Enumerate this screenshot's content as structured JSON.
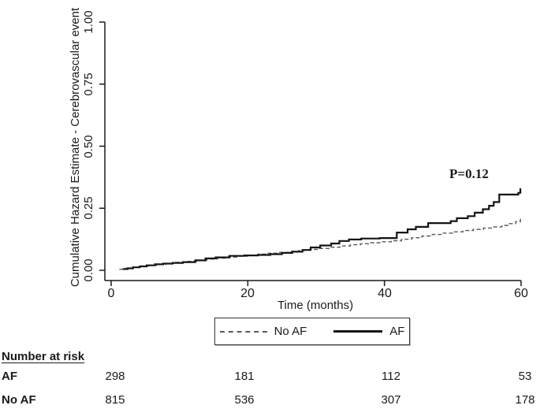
{
  "chart_data": {
    "type": "line",
    "subtype": "step-cumulative-hazard",
    "title": "",
    "xlabel": "Time (months)",
    "ylabel": "Cumulative Hazard Estimate - Cerebrovascular event",
    "xlim": [
      0,
      60
    ],
    "ylim": [
      0,
      1.0
    ],
    "x_ticks": [
      0,
      20,
      40,
      60
    ],
    "x_tick_labels": [
      "0",
      "20",
      "40",
      "60"
    ],
    "y_ticks": [
      0,
      0.25,
      0.5,
      0.75,
      1.0
    ],
    "y_tick_labels": [
      "0.00",
      "0.25",
      "0.50",
      "0.75",
      "1.00"
    ],
    "grid": "off",
    "legend_position": "bottom-center-box",
    "annotation": {
      "text": "P=0.12",
      "x_month": 53,
      "y_value": 0.4
    },
    "axis_color": "#1a1a1a",
    "series": [
      {
        "name": "No AF",
        "style": "dashed",
        "color": "#595959",
        "stroke_width": 1.4,
        "points": [
          [
            1.2,
            0.004
          ],
          [
            2.2,
            0.008
          ],
          [
            3.2,
            0.012
          ],
          [
            4.2,
            0.016
          ],
          [
            5.4,
            0.02
          ],
          [
            6.6,
            0.024
          ],
          [
            8,
            0.028
          ],
          [
            9.5,
            0.032
          ],
          [
            11,
            0.036
          ],
          [
            12.5,
            0.04
          ],
          [
            14,
            0.045
          ],
          [
            15.5,
            0.049
          ],
          [
            17,
            0.053
          ],
          [
            18.5,
            0.057
          ],
          [
            20,
            0.061
          ],
          [
            21.5,
            0.065
          ],
          [
            23,
            0.069
          ],
          [
            24.5,
            0.072
          ],
          [
            26,
            0.076
          ],
          [
            27.5,
            0.08
          ],
          [
            29,
            0.084
          ],
          [
            30.5,
            0.088
          ],
          [
            32,
            0.093
          ],
          [
            33.5,
            0.098
          ],
          [
            35,
            0.103
          ],
          [
            36.5,
            0.107
          ],
          [
            38,
            0.111
          ],
          [
            39.5,
            0.115
          ],
          [
            41,
            0.119
          ],
          [
            42.5,
            0.125
          ],
          [
            44,
            0.131
          ],
          [
            45.5,
            0.138
          ],
          [
            47,
            0.144
          ],
          [
            48.5,
            0.15
          ],
          [
            50,
            0.155
          ],
          [
            51.5,
            0.16
          ],
          [
            53,
            0.165
          ],
          [
            54.5,
            0.17
          ],
          [
            56,
            0.175
          ],
          [
            57.2,
            0.181
          ],
          [
            58.2,
            0.188
          ],
          [
            59.2,
            0.196
          ],
          [
            59.9,
            0.205
          ]
        ]
      },
      {
        "name": "AF",
        "style": "solid",
        "color": "#141414",
        "stroke_width": 2.2,
        "points": [
          [
            1.7,
            0.005
          ],
          [
            2.4,
            0.008
          ],
          [
            3.2,
            0.012
          ],
          [
            4.2,
            0.016
          ],
          [
            5.2,
            0.02
          ],
          [
            6.4,
            0.024
          ],
          [
            7.6,
            0.027
          ],
          [
            9,
            0.03
          ],
          [
            10.5,
            0.033
          ],
          [
            12.3,
            0.04
          ],
          [
            13.8,
            0.048
          ],
          [
            15.3,
            0.052
          ],
          [
            17.3,
            0.058
          ],
          [
            19.5,
            0.06
          ],
          [
            21.5,
            0.062
          ],
          [
            23.3,
            0.065
          ],
          [
            25,
            0.07
          ],
          [
            26.5,
            0.075
          ],
          [
            28,
            0.082
          ],
          [
            29.2,
            0.092
          ],
          [
            30.6,
            0.1
          ],
          [
            32.2,
            0.108
          ],
          [
            33.4,
            0.118
          ],
          [
            34.8,
            0.124
          ],
          [
            36.6,
            0.128
          ],
          [
            39.3,
            0.13
          ],
          [
            41.8,
            0.152
          ],
          [
            43.4,
            0.165
          ],
          [
            44.6,
            0.175
          ],
          [
            46.4,
            0.19
          ],
          [
            49.7,
            0.198
          ],
          [
            50.6,
            0.21
          ],
          [
            52.2,
            0.218
          ],
          [
            53.2,
            0.232
          ],
          [
            54.4,
            0.246
          ],
          [
            55.3,
            0.26
          ],
          [
            56,
            0.275
          ],
          [
            56.8,
            0.305
          ],
          [
            59.6,
            0.312
          ],
          [
            59.9,
            0.327
          ]
        ]
      }
    ]
  },
  "risk_table": {
    "heading": "Number at risk",
    "columns_at_months": [
      0,
      20,
      40,
      60
    ],
    "rows": [
      {
        "label": "AF",
        "values": [
          "298",
          "181",
          "112",
          "53"
        ]
      },
      {
        "label": "No AF",
        "values": [
          "815",
          "536",
          "307",
          "178"
        ]
      }
    ]
  }
}
